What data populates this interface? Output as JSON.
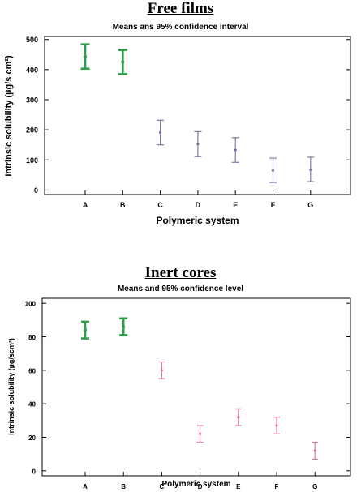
{
  "chart_data": [
    {
      "type": "errorbar",
      "title": "Free films",
      "subtitle": "Means ans 95% confidence interval",
      "xlabel": "Polymeric system",
      "ylabel": "Intrinsic solubility (µg/s cm²)",
      "ylim": [
        -15,
        510
      ],
      "yticks": [
        0,
        100,
        200,
        300,
        400,
        500
      ],
      "grid": false,
      "categories": [
        "A",
        "B",
        "C",
        "D",
        "E",
        "F",
        "G"
      ],
      "means": [
        443,
        425,
        191,
        153,
        133,
        65,
        68
      ],
      "lower": [
        403,
        385,
        150,
        111,
        92,
        25,
        28
      ],
      "upper": [
        484,
        465,
        232,
        194,
        174,
        106,
        109
      ],
      "colors": [
        "#2e9e4a",
        "#2e9e4a",
        "#7070a8",
        "#7070a8",
        "#7070a8",
        "#7070a8",
        "#7070a8"
      ]
    },
    {
      "type": "errorbar",
      "title": "Inert cores",
      "subtitle": "Means and 95% confidence level",
      "xlabel": "Polymeric system",
      "ylabel": "Intrinsic solubility (µg/scm²)",
      "ylim": [
        -3,
        103
      ],
      "yticks": [
        0,
        20,
        40,
        60,
        80,
        100
      ],
      "grid": false,
      "categories": [
        "A",
        "B",
        "C",
        "D",
        "E",
        "F",
        "G"
      ],
      "means": [
        84,
        86,
        60,
        22,
        32,
        27,
        12
      ],
      "lower": [
        79,
        81,
        55,
        17,
        27,
        22,
        7
      ],
      "upper": [
        89,
        91,
        65,
        27,
        37,
        32,
        17
      ],
      "colors": [
        "#2e9e4a",
        "#2e9e4a",
        "#d9748a",
        "#d9748a",
        "#d9748a",
        "#d9748a",
        "#d9748a"
      ]
    }
  ]
}
